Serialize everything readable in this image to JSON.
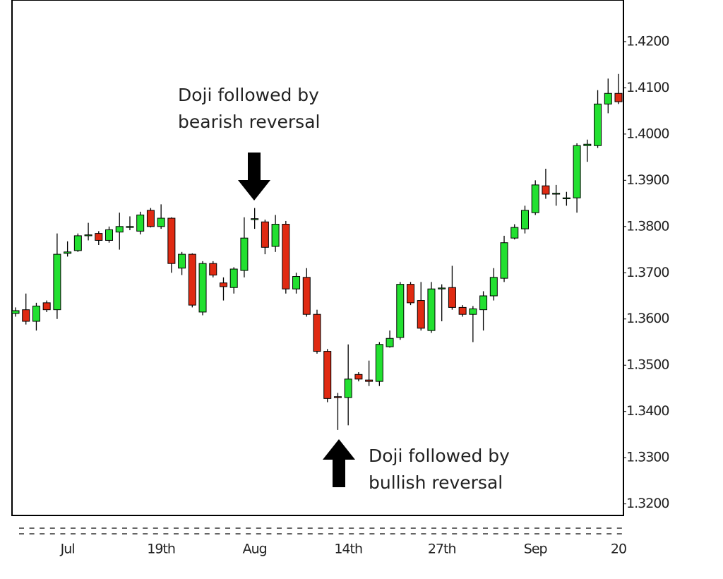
{
  "chart_data": {
    "type": "candlestick",
    "categories": [
      null,
      null,
      null,
      null,
      null,
      "Jul",
      null,
      null,
      null,
      null,
      null,
      null,
      null,
      null,
      "19th",
      null,
      null,
      null,
      null,
      null,
      null,
      null,
      null,
      "Aug",
      null,
      null,
      null,
      null,
      null,
      null,
      null,
      null,
      "14th",
      null,
      null,
      null,
      null,
      null,
      null,
      null,
      null,
      "27th",
      null,
      null,
      null,
      null,
      null,
      null,
      null,
      null,
      "Sep",
      null,
      null,
      null,
      null,
      null,
      null,
      null,
      "20"
    ],
    "open": [
      1.3612,
      1.362,
      1.3595,
      1.3635,
      1.362,
      1.3742,
      1.3748,
      1.378,
      1.3785,
      1.377,
      1.3788,
      1.3798,
      1.379,
      1.3835,
      1.38,
      1.3818,
      1.371,
      1.374,
      1.3615,
      1.372,
      1.3678,
      1.3668,
      1.3705,
      1.3815,
      1.381,
      1.3757,
      1.3805,
      1.3665,
      1.369,
      1.361,
      1.353,
      1.3432,
      1.343,
      1.348,
      1.3468,
      1.3465,
      1.354,
      1.356,
      1.3675,
      1.364,
      1.3575,
      1.3665,
      1.3668,
      1.3625,
      1.361,
      1.362,
      1.365,
      1.3688,
      1.3775,
      1.3795,
      1.383,
      1.3888,
      1.387,
      1.386,
      1.3862,
      1.3975,
      1.3975,
      1.4065,
      1.4088
    ],
    "high": [
      1.3625,
      1.3655,
      1.3635,
      1.364,
      1.3785,
      1.3768,
      1.3785,
      1.3808,
      1.379,
      1.38,
      1.383,
      1.3822,
      1.3832,
      1.384,
      1.3848,
      1.382,
      1.3745,
      1.3742,
      1.3725,
      1.3725,
      1.369,
      1.3712,
      1.382,
      1.384,
      1.3815,
      1.3825,
      1.3812,
      1.37,
      1.371,
      1.362,
      1.3535,
      1.344,
      1.3545,
      1.3485,
      1.351,
      1.355,
      1.3575,
      1.368,
      1.368,
      1.368,
      1.368,
      1.3675,
      1.3715,
      1.363,
      1.3628,
      1.366,
      1.371,
      1.378,
      1.3805,
      1.3845,
      1.39,
      1.3925,
      1.389,
      1.3875,
      1.398,
      1.3988,
      1.4095,
      1.412,
      1.413
    ],
    "low": [
      1.3605,
      1.3588,
      1.3575,
      1.3615,
      1.36,
      1.3735,
      1.3745,
      1.377,
      1.376,
      1.3765,
      1.375,
      1.3792,
      1.3783,
      1.3798,
      1.3795,
      1.37,
      1.3695,
      1.3625,
      1.3608,
      1.369,
      1.364,
      1.3655,
      1.369,
      1.3795,
      1.374,
      1.3745,
      1.3655,
      1.3655,
      1.3605,
      1.3525,
      1.342,
      1.336,
      1.337,
      1.3465,
      1.3455,
      1.3455,
      1.3538,
      1.3555,
      1.363,
      1.3575,
      1.357,
      1.3595,
      1.362,
      1.3605,
      1.355,
      1.3575,
      1.364,
      1.368,
      1.3772,
      1.3785,
      1.3825,
      1.386,
      1.3845,
      1.3845,
      1.383,
      1.394,
      1.397,
      1.4045,
      1.4065
    ],
    "close": [
      1.3618,
      1.3595,
      1.3628,
      1.362,
      1.374,
      1.3745,
      1.378,
      1.3782,
      1.377,
      1.3793,
      1.38,
      1.38,
      1.3825,
      1.38,
      1.3818,
      1.372,
      1.374,
      1.363,
      1.372,
      1.3695,
      1.367,
      1.3708,
      1.3775,
      1.3817,
      1.3755,
      1.3805,
      1.3665,
      1.3692,
      1.361,
      1.353,
      1.3428,
      1.343,
      1.347,
      1.347,
      1.3465,
      1.3545,
      1.3558,
      1.3675,
      1.3635,
      1.358,
      1.3665,
      1.3667,
      1.3625,
      1.361,
      1.3622,
      1.365,
      1.369,
      1.3765,
      1.3798,
      1.3835,
      1.389,
      1.387,
      1.3872,
      1.3862,
      1.3975,
      1.3978,
      1.4065,
      1.4088,
      1.407
    ],
    "up_color": "#22e030",
    "down_color": "#e02a12",
    "ylim": [
      1.3175,
      1.429
    ],
    "yticks": [
      {
        "value": 1.32,
        "label": "1.3200"
      },
      {
        "value": 1.33,
        "label": "1.3300"
      },
      {
        "value": 1.34,
        "label": "1.3400"
      },
      {
        "value": 1.35,
        "label": "1.3500"
      },
      {
        "value": 1.36,
        "label": "1.3600"
      },
      {
        "value": 1.37,
        "label": "1.3700"
      },
      {
        "value": 1.38,
        "label": "1.3800"
      },
      {
        "value": 1.39,
        "label": "1.3900"
      },
      {
        "value": 1.4,
        "label": "1.4000"
      },
      {
        "value": 1.41,
        "label": "1.4100"
      },
      {
        "value": 1.42,
        "label": "1.4200"
      }
    ],
    "grid": false,
    "annotations": [
      {
        "lines": [
          "Doji followed by",
          "bearish reversal"
        ]
      },
      {
        "lines": [
          "Doji followed by",
          "bullish reversal"
        ]
      }
    ]
  }
}
